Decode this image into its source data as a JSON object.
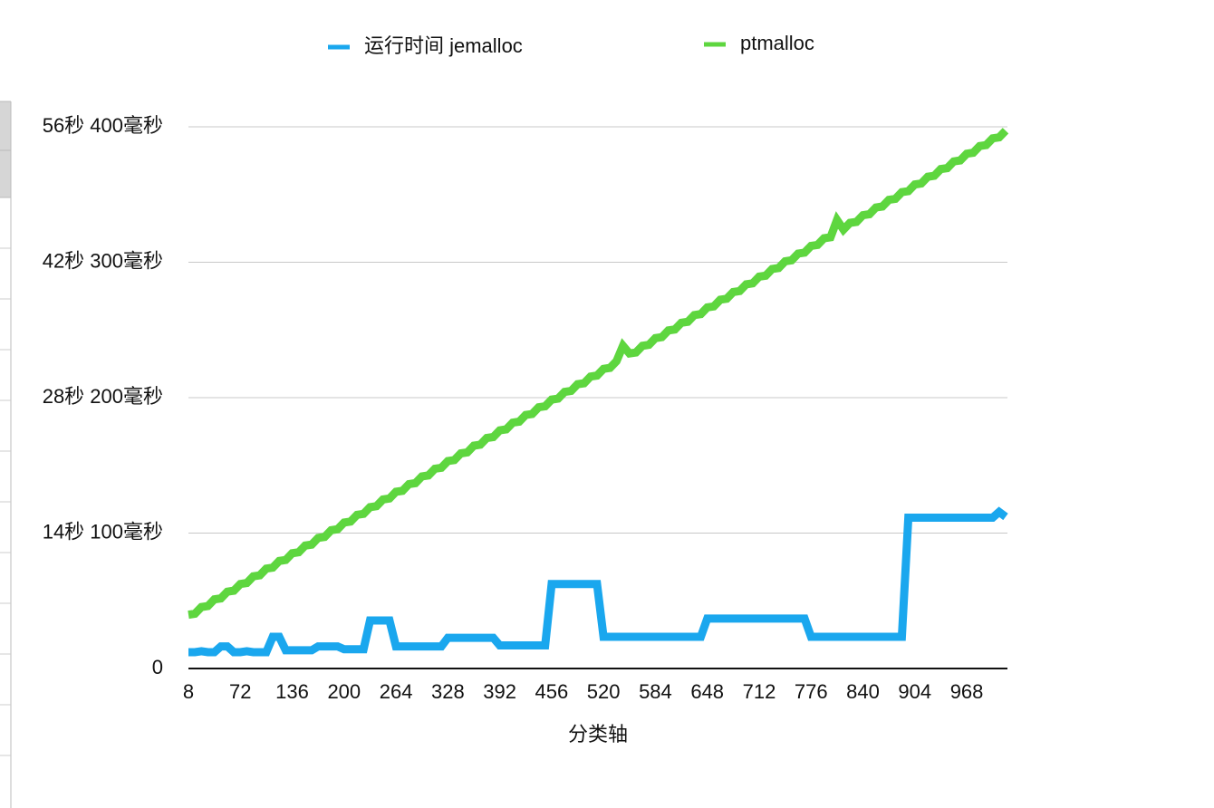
{
  "chart_data": {
    "type": "line",
    "xlabel": "分类轴",
    "categories": [
      "8",
      null,
      null,
      null,
      null,
      null,
      null,
      null,
      "72",
      null,
      null,
      null,
      null,
      null,
      null,
      null,
      "136",
      null,
      null,
      null,
      null,
      null,
      null,
      null,
      "200",
      null,
      null,
      null,
      null,
      null,
      null,
      null,
      "264",
      null,
      null,
      null,
      null,
      null,
      null,
      null,
      "328",
      null,
      null,
      null,
      null,
      null,
      null,
      null,
      "392",
      null,
      null,
      null,
      null,
      null,
      null,
      null,
      "456",
      null,
      null,
      null,
      null,
      null,
      null,
      null,
      "520",
      null,
      null,
      null,
      null,
      null,
      null,
      null,
      "584",
      null,
      null,
      null,
      null,
      null,
      null,
      null,
      "648",
      null,
      null,
      null,
      null,
      null,
      null,
      null,
      "712",
      null,
      null,
      null,
      null,
      null,
      null,
      null,
      "776",
      null,
      null,
      null,
      null,
      null,
      null,
      null,
      "840",
      null,
      null,
      null,
      null,
      null,
      null,
      null,
      "904",
      null,
      null,
      null,
      null,
      null,
      null,
      null,
      "968",
      null,
      null,
      null,
      null,
      null,
      null
    ],
    "series": [
      {
        "name": "运行时间 jemalloc",
        "color": "#1aa7ee",
        "values": [
          1700,
          1700,
          1800,
          1700,
          1700,
          2300,
          2300,
          1700,
          1700,
          1800,
          1700,
          1700,
          1700,
          3300,
          3300,
          1900,
          1900,
          1900,
          1900,
          1900,
          2300,
          2300,
          2300,
          2300,
          2000,
          2000,
          2000,
          2000,
          5000,
          5000,
          5000,
          5000,
          2300,
          2300,
          2300,
          2300,
          2300,
          2300,
          2300,
          2300,
          3200,
          3200,
          3200,
          3200,
          3200,
          3200,
          3200,
          3200,
          2400,
          2400,
          2400,
          2400,
          2400,
          2400,
          2400,
          2400,
          8800,
          8800,
          8800,
          8800,
          8800,
          8800,
          8800,
          8800,
          3300,
          3300,
          3300,
          3300,
          3300,
          3300,
          3300,
          3300,
          3300,
          3300,
          3300,
          3300,
          3300,
          3300,
          3300,
          3300,
          5200,
          5200,
          5200,
          5200,
          5200,
          5200,
          5200,
          5200,
          5200,
          5200,
          5200,
          5200,
          5200,
          5200,
          5200,
          5200,
          3300,
          3300,
          3300,
          3300,
          3300,
          3300,
          3300,
          3300,
          3300,
          3300,
          3300,
          3300,
          3300,
          3300,
          3300,
          15700,
          15700,
          15700,
          15700,
          15700,
          15700,
          15700,
          15700,
          15700,
          15700,
          15700,
          15700,
          15700,
          15700,
          16300,
          15800
        ]
      },
      {
        "name": "ptmalloc",
        "color": "#5ed63f",
        "values": [
          5600,
          5700,
          6400,
          6500,
          7200,
          7300,
          8000,
          8100,
          8800,
          8900,
          9600,
          9700,
          10400,
          10500,
          11200,
          11300,
          12000,
          12100,
          12800,
          12900,
          13600,
          13700,
          14400,
          14500,
          15200,
          15300,
          16000,
          16100,
          16800,
          16900,
          17600,
          17700,
          18400,
          18500,
          19200,
          19300,
          20000,
          20100,
          20800,
          20900,
          21600,
          21700,
          22400,
          22500,
          23200,
          23300,
          24000,
          24100,
          24800,
          24900,
          25600,
          25700,
          26400,
          26500,
          27200,
          27300,
          28000,
          28100,
          28800,
          28900,
          29600,
          29700,
          30400,
          30500,
          31200,
          31300,
          32000,
          33600,
          32800,
          32900,
          33600,
          33700,
          34400,
          34500,
          35200,
          35300,
          36000,
          36100,
          36800,
          36900,
          37600,
          37700,
          38400,
          38500,
          39200,
          39300,
          40000,
          40100,
          40800,
          40900,
          41600,
          41700,
          42400,
          42500,
          43200,
          43300,
          44000,
          44100,
          44800,
          44900,
          46700,
          45700,
          46400,
          46500,
          47200,
          47300,
          48000,
          48100,
          48800,
          48900,
          49600,
          49700,
          50400,
          50500,
          51200,
          51300,
          52000,
          52100,
          52800,
          52900,
          53600,
          53700,
          54400,
          54500,
          55200,
          55300,
          56000
        ]
      }
    ],
    "ylim": [
      0,
      56400
    ],
    "yticks": [
      0,
      {
        "value": 14100,
        "label": "14秒 100毫秒"
      },
      {
        "value": 28200,
        "label": "28秒 200毫秒"
      },
      {
        "value": 42300,
        "label": "42秒 300毫秒"
      },
      {
        "value": 56400,
        "label": "56秒 400毫秒"
      }
    ],
    "grid": true
  }
}
